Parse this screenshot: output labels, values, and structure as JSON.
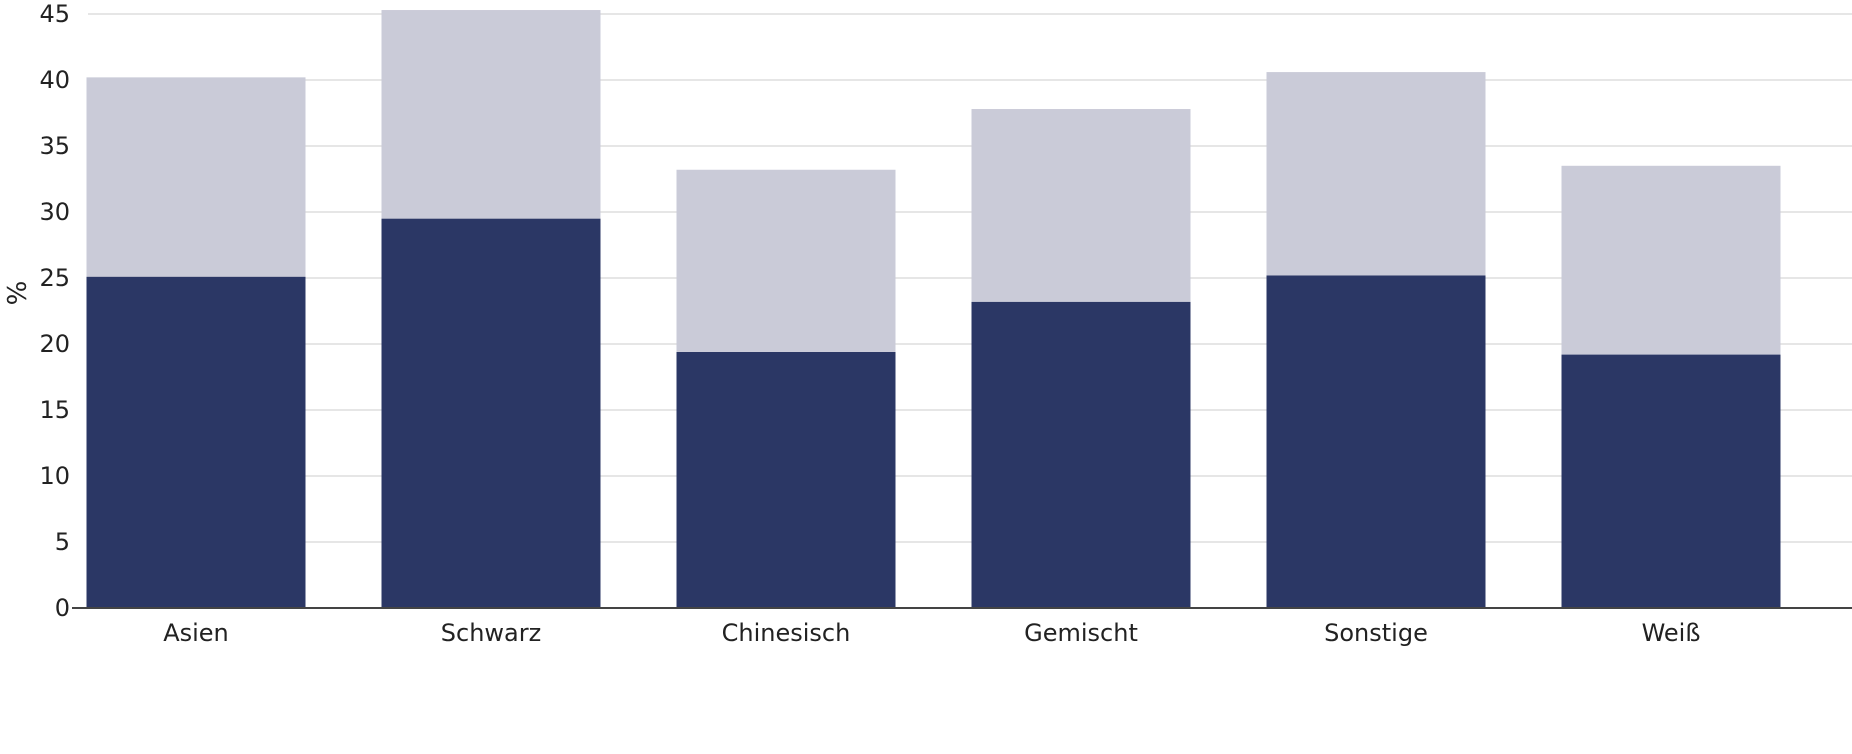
{
  "chart_data": {
    "type": "bar",
    "stacked": true,
    "categories": [
      "Asien",
      "Schwarz",
      "Chinesisch",
      "Gemischt",
      "Sonstige",
      "Weiß"
    ],
    "series": [
      {
        "values": [
          25.1,
          29.5,
          19.4,
          23.2,
          25.2,
          19.2
        ],
        "color": "#2b3765"
      },
      {
        "values": [
          15.1,
          15.8,
          13.8,
          14.6,
          15.4,
          14.3
        ],
        "color": "#cacbd8"
      }
    ],
    "title": "",
    "xlabel": "",
    "ylabel": "%",
    "ylim": [
      0,
      45
    ],
    "yticks": [
      0,
      5,
      10,
      15,
      20,
      25,
      30,
      35,
      40,
      45
    ],
    "grid": true,
    "gridColor": "#e6e6e6",
    "axisColor": "#444444"
  }
}
